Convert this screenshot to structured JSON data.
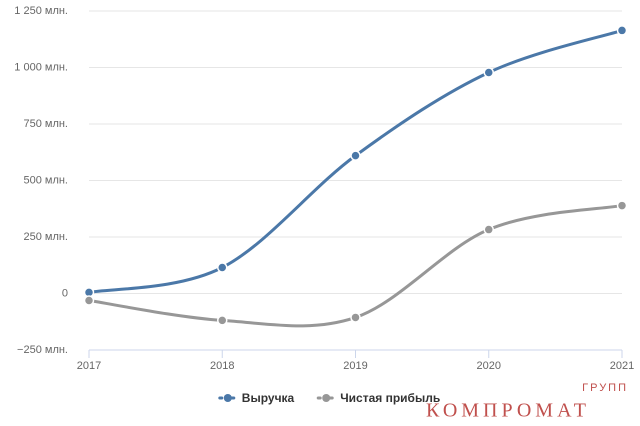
{
  "chart_data": {
    "type": "line",
    "x": [
      2017,
      2018,
      2019,
      2020,
      2021
    ],
    "xlim": [
      2017,
      2021
    ],
    "xticks": [
      2017,
      2018,
      2019,
      2020,
      2021
    ],
    "ylim": [
      -250,
      1250
    ],
    "yticks": [
      {
        "value": -250,
        "label": "−250 млн."
      },
      0,
      {
        "value": 250,
        "label": "250 млн."
      },
      {
        "value": 500,
        "label": "500 млн."
      },
      {
        "value": 750,
        "label": "750 млн."
      },
      {
        "value": 1000,
        "label": "1 000 млн."
      },
      {
        "value": 1250,
        "label": "1 250 млн."
      }
    ],
    "grid": true,
    "legend": "bottom",
    "series": [
      {
        "name": "Выручка",
        "color": "#4b78a8",
        "values": [
          5,
          115,
          610,
          978,
          1164
        ]
      },
      {
        "name": "Чистая прибыль",
        "color": "#979797",
        "values": [
          -31,
          -119,
          -106,
          283,
          389
        ]
      }
    ],
    "watermark": {
      "text": "КОМПРОМАТ",
      "sub": "ГРУПП"
    }
  }
}
